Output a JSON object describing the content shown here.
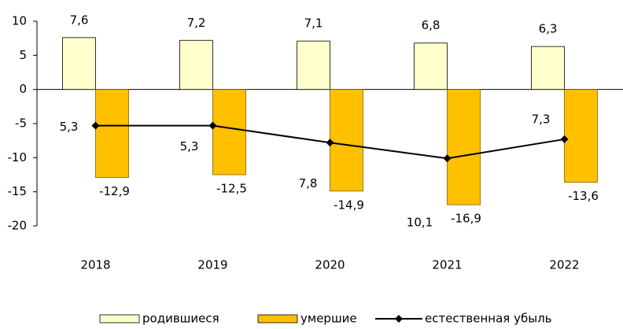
{
  "chart_data": {
    "type": "bar",
    "categories": [
      "2018",
      "2019",
      "2020",
      "2021",
      "2022"
    ],
    "series": [
      {
        "name": "родившиеся",
        "type": "bar",
        "color": "#ffffcc",
        "values": [
          7.6,
          7.2,
          7.1,
          6.8,
          6.3
        ],
        "value_labels": [
          "7,6",
          "7,2",
          "7,1",
          "6,8",
          "6,3"
        ]
      },
      {
        "name": "умершие",
        "type": "bar",
        "color": "#ffc000",
        "values": [
          -12.9,
          -12.5,
          -14.9,
          -16.9,
          -13.6
        ],
        "value_labels": [
          "-12,9",
          "-12,5",
          "-14,9",
          "-16,9",
          "-13,6"
        ]
      },
      {
        "name": "естественная убыль",
        "type": "line",
        "color": "#000000",
        "values": [
          -5.3,
          -5.3,
          -7.8,
          -10.1,
          -7.3
        ],
        "value_labels": [
          "5,3",
          "5,3",
          "7,8",
          "10,1",
          "7,3"
        ]
      }
    ],
    "ylim": [
      -20,
      10
    ],
    "yticks": [
      10,
      5,
      0,
      -5,
      -10,
      -15,
      -20
    ],
    "grid": false,
    "legend": "bottom"
  }
}
